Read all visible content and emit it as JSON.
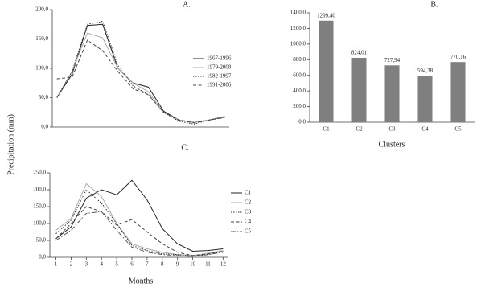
{
  "chart_data": [
    {
      "type": "line",
      "title": "A.",
      "ylabel": "Precipitation (mm)",
      "x": [
        1,
        2,
        3,
        4,
        5,
        6,
        7,
        8,
        9,
        10,
        11,
        12
      ],
      "xlim": [
        0.7,
        12.3
      ],
      "ylim": [
        0,
        200
      ],
      "yticks": [
        {
          "value": 0,
          "label": "0,0"
        },
        {
          "value": 50,
          "label": "50,0"
        },
        {
          "value": 100,
          "label": "100,0"
        },
        {
          "value": 150,
          "label": "150,0"
        },
        {
          "value": 200,
          "label": "200,0"
        }
      ],
      "legend": "right",
      "series": [
        {
          "name": "1967-1996",
          "color": "#222222",
          "dash": "solid",
          "values": [
            50,
            90,
            173,
            175,
            100,
            75,
            68,
            27,
            12,
            8,
            12,
            17
          ]
        },
        {
          "name": "1979-2008",
          "color": "#aaaaaa",
          "dash": "solid",
          "values": [
            50,
            95,
            160,
            152,
            100,
            75,
            60,
            25,
            12,
            8,
            12,
            18
          ]
        },
        {
          "name": "1982-1997",
          "color": "#333333",
          "dash": "dotted",
          "values": [
            50,
            95,
            175,
            180,
            105,
            70,
            55,
            25,
            10,
            5,
            12,
            18
          ]
        },
        {
          "name": "1991-2006",
          "color": "#444444",
          "dash": "dashed",
          "values": [
            82,
            85,
            148,
            130,
            95,
            65,
            55,
            25,
            12,
            7,
            12,
            16
          ]
        }
      ]
    },
    {
      "type": "bar",
      "title": "B.",
      "xlabel": "Clusters",
      "categories": [
        "C1",
        "C2",
        "C3",
        "C4",
        "C5"
      ],
      "values": [
        1299.4,
        824.01,
        727.94,
        594.38,
        770.16
      ],
      "value_labels": [
        "1299,40",
        "824,01",
        "727,94",
        "594,38",
        "770,16"
      ],
      "color": "#7f7f7f",
      "ylim": [
        0,
        1400
      ],
      "yticks": [
        {
          "value": 0,
          "label": "0,0"
        },
        {
          "value": 200,
          "label": "200,0"
        },
        {
          "value": 400,
          "label": "400,0"
        },
        {
          "value": 600,
          "label": "600,0"
        },
        {
          "value": 800,
          "label": "800,0"
        },
        {
          "value": 1000,
          "label": "1000,0"
        },
        {
          "value": 1200,
          "label": "1200,0"
        },
        {
          "value": 1400,
          "label": "1400,0"
        }
      ]
    },
    {
      "type": "line",
      "title": "C.",
      "xlabel": "Months",
      "x": [
        1,
        2,
        3,
        4,
        5,
        6,
        7,
        8,
        9,
        10,
        11,
        12
      ],
      "xlim": [
        0.6,
        12.3
      ],
      "xticks": [
        1,
        2,
        3,
        4,
        5,
        6,
        7,
        8,
        9,
        10,
        11,
        12
      ],
      "ylim": [
        0,
        250
      ],
      "yticks": [
        {
          "value": 0,
          "label": "0,0"
        },
        {
          "value": 50,
          "label": "50,0"
        },
        {
          "value": 100,
          "label": "100,0"
        },
        {
          "value": 150,
          "label": "150,0"
        },
        {
          "value": 200,
          "label": "200,0"
        },
        {
          "value": 250,
          "label": "250,0"
        }
      ],
      "legend": "right",
      "series": [
        {
          "name": "C1",
          "color": "#222222",
          "dash": "solid",
          "values": [
            55,
            90,
            175,
            200,
            185,
            228,
            170,
            85,
            40,
            18,
            20,
            25
          ]
        },
        {
          "name": "C2",
          "color": "#aaaaaa",
          "dash": "solid",
          "values": [
            80,
            115,
            218,
            180,
            100,
            40,
            25,
            15,
            8,
            5,
            12,
            20
          ]
        },
        {
          "name": "C3",
          "color": "#333333",
          "dash": "dotted",
          "values": [
            70,
            110,
            200,
            160,
            100,
            35,
            20,
            10,
            8,
            3,
            8,
            18
          ]
        },
        {
          "name": "C4",
          "color": "#444444",
          "dash": "dashed",
          "values": [
            55,
            100,
            150,
            135,
            95,
            112,
            75,
            40,
            15,
            5,
            10,
            18
          ]
        },
        {
          "name": "C5",
          "color": "#555555",
          "dash": "dashdot",
          "values": [
            50,
            80,
            130,
            135,
            80,
            30,
            15,
            8,
            5,
            2,
            8,
            15
          ]
        }
      ]
    }
  ]
}
